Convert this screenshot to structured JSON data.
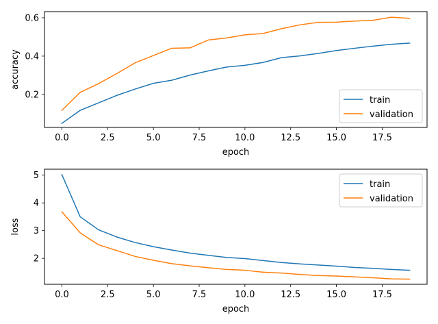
{
  "chart_data": [
    {
      "type": "line",
      "xlabel": "epoch",
      "ylabel": "accuracy",
      "xlim": [
        -0.95,
        19.95
      ],
      "ylim": [
        0.028,
        0.632
      ],
      "xticks": [
        0.0,
        2.5,
        5.0,
        7.5,
        10.0,
        12.5,
        15.0,
        17.5
      ],
      "xtick_labels": [
        "0.0",
        "2.5",
        "5.0",
        "7.5",
        "10.0",
        "12.5",
        "15.0",
        "17.5"
      ],
      "yticks": [
        0.2,
        0.4,
        0.6
      ],
      "ytick_labels": [
        "0.2",
        "0.4",
        "0.6"
      ],
      "legend_loc": "lower-right",
      "x": [
        0,
        1,
        2,
        3,
        4,
        5,
        6,
        7,
        8,
        9,
        10,
        11,
        12,
        13,
        14,
        15,
        16,
        17,
        18,
        19
      ],
      "series": [
        {
          "name": "train",
          "color": "#1f77b4",
          "values": [
            0.049,
            0.117,
            0.156,
            0.195,
            0.228,
            0.258,
            0.274,
            0.301,
            0.323,
            0.343,
            0.352,
            0.367,
            0.392,
            0.401,
            0.414,
            0.429,
            0.441,
            0.452,
            0.462,
            0.468
          ]
        },
        {
          "name": "validation",
          "color": "#ff7f0e",
          "values": [
            0.117,
            0.211,
            0.256,
            0.309,
            0.365,
            0.403,
            0.441,
            0.443,
            0.484,
            0.495,
            0.511,
            0.518,
            0.543,
            0.563,
            0.576,
            0.577,
            0.583,
            0.587,
            0.603,
            0.597
          ]
        }
      ]
    },
    {
      "type": "line",
      "xlabel": "epoch",
      "ylabel": "loss",
      "xlim": [
        -0.95,
        19.95
      ],
      "ylim": [
        1.065,
        5.215
      ],
      "xticks": [
        0.0,
        2.5,
        5.0,
        7.5,
        10.0,
        12.5,
        15.0,
        17.5
      ],
      "xtick_labels": [
        "0.0",
        "2.5",
        "5.0",
        "7.5",
        "10.0",
        "12.5",
        "15.0",
        "17.5"
      ],
      "yticks": [
        2,
        3,
        4,
        5
      ],
      "ytick_labels": [
        "2",
        "3",
        "4",
        "5"
      ],
      "legend_loc": "upper-right",
      "x": [
        0,
        1,
        2,
        3,
        4,
        5,
        6,
        7,
        8,
        9,
        10,
        11,
        12,
        13,
        14,
        15,
        16,
        17,
        18,
        19
      ],
      "series": [
        {
          "name": "train",
          "color": "#1f77b4",
          "values": [
            5.02,
            3.5,
            3.03,
            2.77,
            2.57,
            2.42,
            2.3,
            2.19,
            2.11,
            2.03,
            1.99,
            1.92,
            1.85,
            1.8,
            1.76,
            1.72,
            1.67,
            1.64,
            1.6,
            1.57
          ]
        },
        {
          "name": "validation",
          "color": "#ff7f0e",
          "values": [
            3.68,
            2.92,
            2.49,
            2.28,
            2.07,
            1.93,
            1.81,
            1.73,
            1.66,
            1.6,
            1.57,
            1.5,
            1.47,
            1.42,
            1.38,
            1.36,
            1.33,
            1.3,
            1.26,
            1.25
          ]
        }
      ]
    }
  ]
}
